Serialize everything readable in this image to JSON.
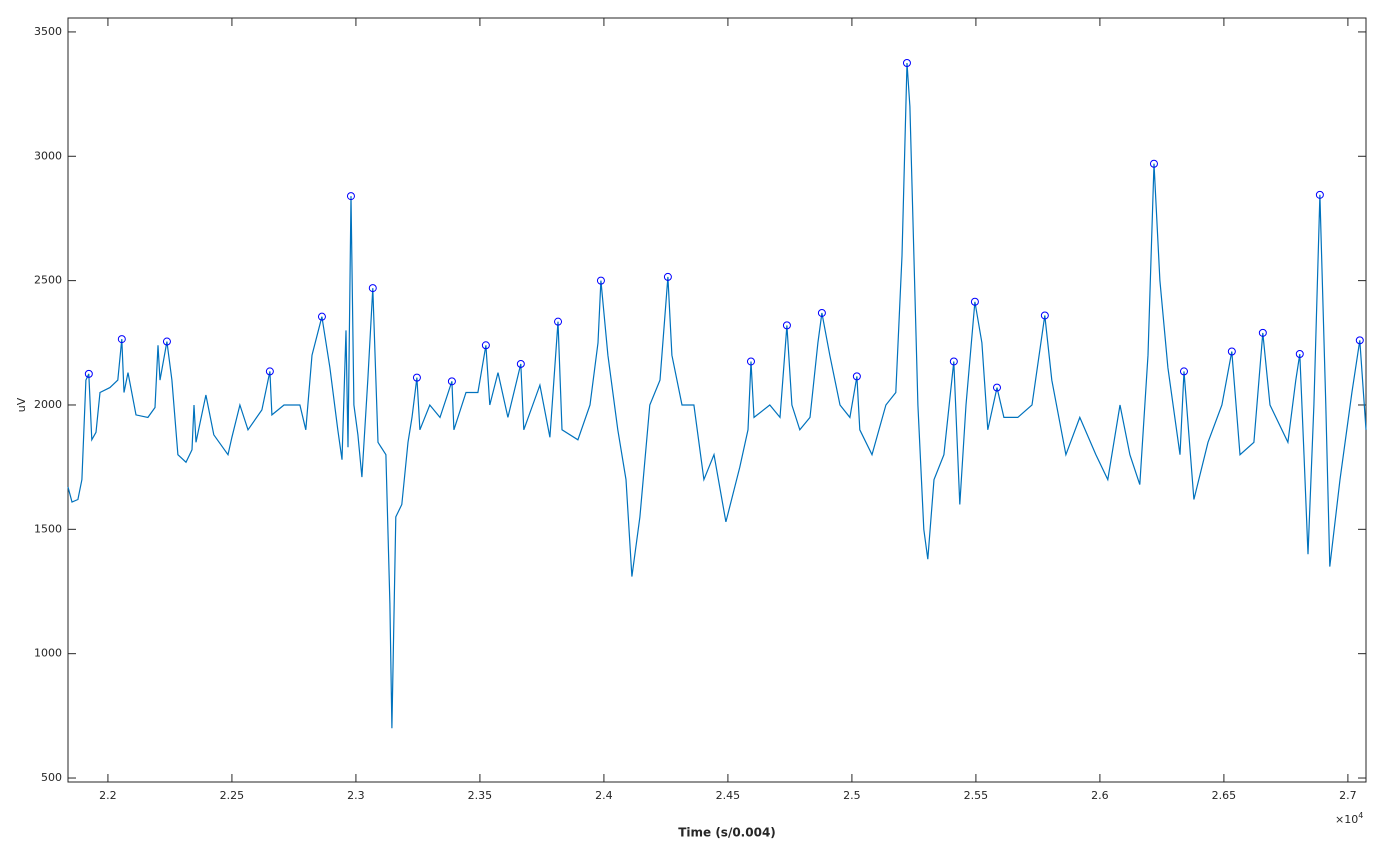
{
  "chart_data": {
    "type": "line",
    "xlabel": "Time (s/0.004)",
    "ylabel": "uV",
    "x_multiplier": {
      "base": "×10",
      "exponent": "4"
    },
    "xlim": [
      21839,
      27073
    ],
    "ylim": [
      484,
      3556
    ],
    "xticks": [
      {
        "value": 22000,
        "label": "2.2"
      },
      {
        "value": 22500,
        "label": "2.25"
      },
      {
        "value": 23000,
        "label": "2.3"
      },
      {
        "value": 23500,
        "label": "2.35"
      },
      {
        "value": 24000,
        "label": "2.4"
      },
      {
        "value": 24500,
        "label": "2.45"
      },
      {
        "value": 25000,
        "label": "2.5"
      },
      {
        "value": 25500,
        "label": "2.55"
      },
      {
        "value": 26000,
        "label": "2.6"
      },
      {
        "value": 26500,
        "label": "2.65"
      },
      {
        "value": 27000,
        "label": "2.7"
      }
    ],
    "yticks": [
      500,
      1000,
      1500,
      2000,
      2500,
      3000,
      3500
    ],
    "series": [
      {
        "color": "#0072bd",
        "x": [
          21839,
          21855,
          21879,
          21895,
          21911,
          21923,
          21935,
          21952,
          21968,
          22008,
          22040,
          22056,
          22065,
          22081,
          22113,
          22161,
          22190,
          22202,
          22210,
          22238,
          22258,
          22282,
          22315,
          22339,
          22347,
          22355,
          22395,
          22427,
          22484,
          22500,
          22532,
          22565,
          22621,
          22653,
          22661,
          22710,
          22774,
          22798,
          22823,
          22863,
          22895,
          22927,
          22944,
          22960,
          22968,
          22980,
          22992,
          23008,
          23024,
          23048,
          23068,
          23089,
          23121,
          23137,
          23145,
          23161,
          23185,
          23210,
          23226,
          23246,
          23258,
          23298,
          23339,
          23387,
          23395,
          23444,
          23492,
          23524,
          23540,
          23573,
          23613,
          23665,
          23677,
          23742,
          23782,
          23815,
          23831,
          23895,
          23944,
          23976,
          23988,
          24016,
          24056,
          24089,
          24113,
          24145,
          24185,
          24226,
          24258,
          24274,
          24315,
          24363,
          24403,
          24444,
          24492,
          24548,
          24581,
          24593,
          24605,
          24669,
          24710,
          24738,
          24758,
          24790,
          24831,
          24863,
          24879,
          24911,
          24952,
          24992,
          25020,
          25032,
          25081,
          25137,
          25177,
          25202,
          25222,
          25234,
          25266,
          25290,
          25306,
          25331,
          25371,
          25411,
          25435,
          25460,
          25496,
          25524,
          25548,
          25585,
          25613,
          25669,
          25726,
          25778,
          25806,
          25863,
          25919,
          25984,
          26032,
          26081,
          26121,
          26161,
          26194,
          26218,
          26242,
          26274,
          26323,
          26339,
          26379,
          26436,
          26492,
          26532,
          26565,
          26621,
          26657,
          26686,
          26758,
          26790,
          26806,
          26823,
          26839,
          26863,
          26887,
          26911,
          26927,
          26968,
          27016,
          27048,
          27073
        ],
        "values": [
          1670,
          1610,
          1620,
          1700,
          2100,
          2125,
          1860,
          1890,
          2050,
          2070,
          2100,
          2265,
          2050,
          2130,
          1960,
          1950,
          1990,
          2240,
          2100,
          2255,
          2100,
          1800,
          1770,
          1820,
          2000,
          1850,
          2040,
          1880,
          1800,
          1870,
          2000,
          1900,
          1980,
          2135,
          1960,
          2000,
          2000,
          1900,
          2200,
          2355,
          2150,
          1900,
          1780,
          2300,
          1830,
          2840,
          2000,
          1880,
          1710,
          2100,
          2470,
          1850,
          1800,
          1200,
          700,
          1550,
          1600,
          1850,
          1950,
          2110,
          1900,
          2000,
          1950,
          2095,
          1900,
          2050,
          2050,
          2240,
          2000,
          2130,
          1950,
          2165,
          1900,
          2080,
          1870,
          2335,
          1900,
          1860,
          2000,
          2250,
          2500,
          2200,
          1900,
          1700,
          1310,
          1550,
          2000,
          2100,
          2515,
          2200,
          2000,
          2000,
          1700,
          1800,
          1530,
          1750,
          1900,
          2175,
          1950,
          2000,
          1950,
          2320,
          2000,
          1900,
          1950,
          2250,
          2370,
          2200,
          2000,
          1950,
          2115,
          1900,
          1800,
          2000,
          2050,
          2600,
          3375,
          3200,
          2000,
          1500,
          1380,
          1700,
          1800,
          2175,
          1600,
          2000,
          2415,
          2250,
          1900,
          2070,
          1950,
          1950,
          2000,
          2360,
          2100,
          1800,
          1950,
          1800,
          1700,
          2000,
          1800,
          1680,
          2200,
          2970,
          2500,
          2150,
          1800,
          2135,
          1620,
          1850,
          2000,
          2215,
          1800,
          1850,
          2290,
          2000,
          1850,
          2100,
          2205,
          1800,
          1400,
          2000,
          2845,
          2000,
          1350,
          1700,
          2050,
          2260,
          1900
        ]
      },
      {
        "color": "#0000ff",
        "marker": "circle",
        "x": [
          21923,
          22056,
          22238,
          22653,
          22863,
          22980,
          23068,
          23246,
          23387,
          23524,
          23665,
          23815,
          23988,
          24258,
          24593,
          24738,
          24879,
          25020,
          25222,
          25411,
          25496,
          25585,
          25778,
          26218,
          26339,
          26532,
          26657,
          26806,
          26887,
          27048
        ],
        "values": [
          2125,
          2265,
          2255,
          2135,
          2355,
          2840,
          2470,
          2110,
          2095,
          2240,
          2165,
          2335,
          2500,
          2515,
          2175,
          2320,
          2370,
          2115,
          3375,
          2175,
          2415,
          2070,
          2360,
          2970,
          2135,
          2215,
          2290,
          2205,
          2845,
          2260
        ]
      }
    ]
  }
}
